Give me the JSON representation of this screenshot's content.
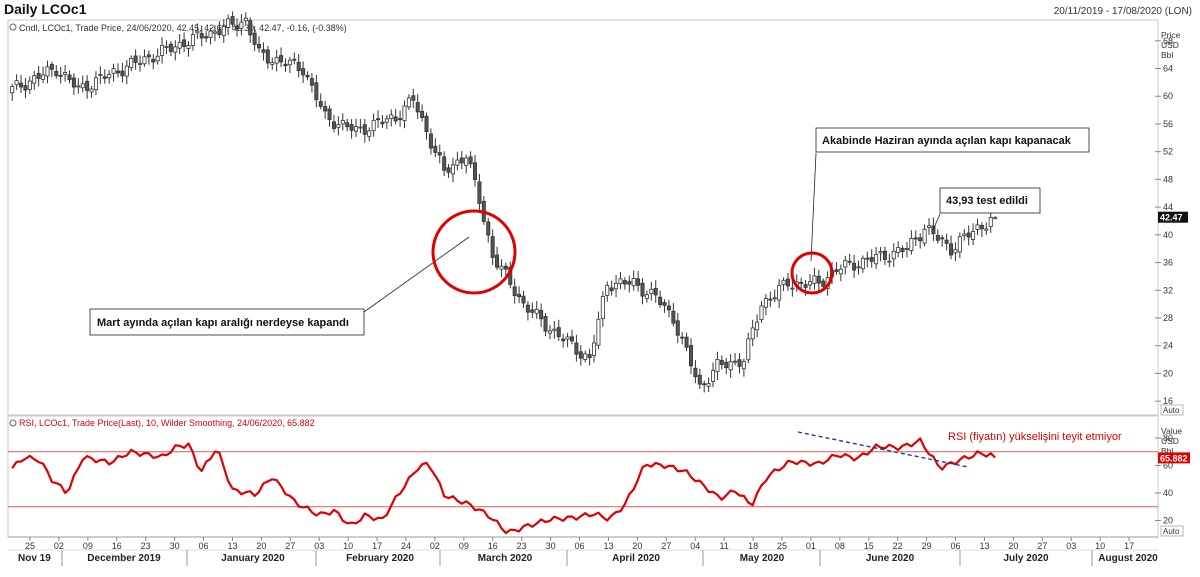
{
  "title": "Daily LCOc1",
  "date_range": "20/11/2019 - 17/08/2020 (LON)",
  "auto_label": "Auto",
  "colors": {
    "rsi_line": "#e00000",
    "candle": "#333333",
    "annotation": "#e00000",
    "trend": "#1a3d8f",
    "price_bg": "#111111"
  },
  "chart_data": [
    {
      "type": "candlestick",
      "legend": "Cndl, LCOc1, Trade Price, 24/06/2020, 42.45, 42.69, 42.30, 42.47, -0.16, (-0.38%)",
      "ylabel": "Price\nUSD\nBbl",
      "ylim": [
        14,
        71
      ],
      "yticks": [
        16,
        20,
        24,
        28,
        32,
        36,
        40,
        44,
        48,
        52,
        56,
        60,
        64,
        68
      ],
      "last_price": "42.47",
      "last_value": 42.47,
      "x_tick_labels": [
        "25",
        "02",
        "09",
        "16",
        "23",
        "30",
        "06",
        "13",
        "20",
        "27",
        "03",
        "10",
        "17",
        "24",
        "02",
        "09",
        "16",
        "23",
        "30",
        "06",
        "13",
        "20",
        "27",
        "04",
        "11",
        "18",
        "25",
        "01",
        "08",
        "15",
        "22",
        "29",
        "06",
        "13",
        "20",
        "27",
        "03",
        "10",
        "17"
      ],
      "x_month_labels": [
        "Nov 19",
        "December 2019",
        "January 2020",
        "February 2020",
        "March 2020",
        "April 2020",
        "May 2020",
        "June 2020",
        "July 2020",
        "August 2020"
      ],
      "ohlc": [],
      "annotations": [
        "Akabinde Haziran ayında açılan kapı kapanacak",
        "43,93 test edildi",
        "Mart ayında açılan kapı aralığı nerdeyse kapandı"
      ]
    },
    {
      "type": "line",
      "legend": "RSI, LCOc1, Trade Price(Last), 10, Wilder Smoothing, 24/06/2020, 65.882",
      "ylabel": "Value\nUSD\nBbl",
      "ylim": [
        8,
        96
      ],
      "yticks": [
        20,
        40,
        60,
        80
      ],
      "reference_lines": [
        70,
        30
      ],
      "last_value": "65.882",
      "annotation": "RSI (fiyatın) yükselişini teyit etmiyor",
      "values": []
    }
  ]
}
